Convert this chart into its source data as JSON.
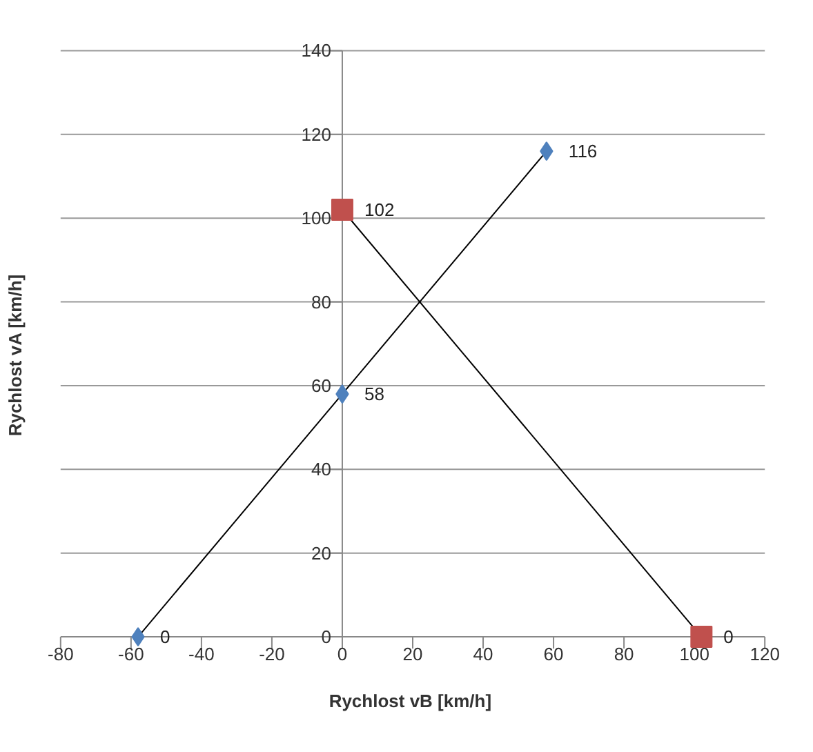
{
  "chart_data": {
    "type": "line",
    "xlabel": "Rychlost vB  [km/h]",
    "ylabel": "Rychlost vA  [km/h]",
    "xlim": [
      -80,
      120
    ],
    "xticks": [
      -80,
      -60,
      -40,
      -20,
      0,
      20,
      40,
      60,
      80,
      100,
      120
    ],
    "ylim": [
      0,
      140
    ],
    "yticks": [
      0,
      20,
      40,
      60,
      80,
      100,
      120,
      140
    ],
    "grid": "y",
    "data_labels": true,
    "line_style": "solid",
    "series": [
      {
        "x": [
          -58,
          0,
          58
        ],
        "values": [
          0,
          58,
          116
        ],
        "color": "#4f81bd",
        "marker": "diamond"
      },
      {
        "x": [
          0,
          102
        ],
        "values": [
          102,
          0
        ],
        "color": "#c0504d",
        "marker": "square"
      }
    ]
  }
}
